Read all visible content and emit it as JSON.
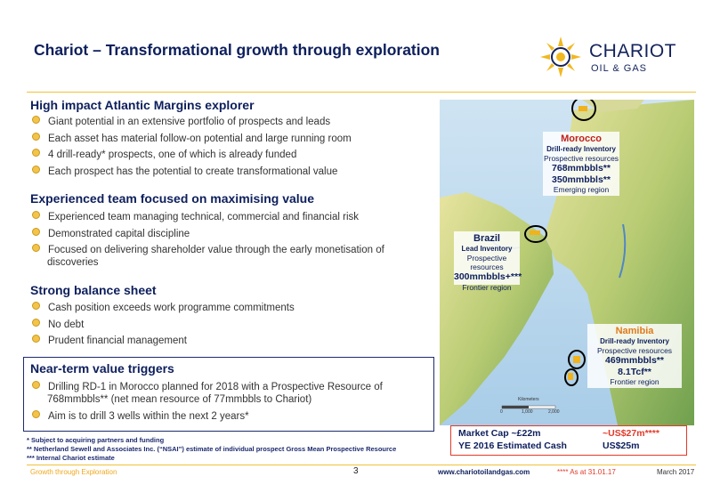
{
  "title": "Chariot – Transformational growth through exploration",
  "logo": {
    "name": "CHARIOT",
    "sub": "OIL & GAS"
  },
  "sections": [
    {
      "heading": "High impact Atlantic Margins explorer",
      "bullets": [
        "Giant potential in an extensive portfolio of prospects and leads",
        "Each asset has material follow-on potential and large running room",
        "4 drill-ready* prospects, one of which is already funded",
        "Each prospect has the potential to create transformational value"
      ]
    },
    {
      "heading": "Experienced team focused on maximising value",
      "bullets": [
        "Experienced team managing technical, commercial and financial risk",
        "Demonstrated capital discipline",
        "Focused on delivering shareholder value through the early monetisation of",
        "discoveries"
      ]
    },
    {
      "heading": "Strong balance sheet",
      "bullets": [
        "Cash position exceeds work programme commitments",
        "No debt",
        "Prudent financial management"
      ]
    },
    {
      "heading": "Near-term value triggers",
      "bullets": [
        "Drilling RD-1 in Morocco planned for 2018 with a Prospective Resource of",
        "768mmbbls** (net mean resource of 77mmbbls  to Chariot)",
        "Aim is to drill 3 wells within the next 2 years*"
      ]
    }
  ],
  "footnotes": [
    "*  Subject to acquiring partners and funding",
    "**  Netherland Sewell and Associates Inc. (“NSAI”) estimate of individual prospect Gross Mean Prospective Resource",
    "***  Internal Chariot estimate"
  ],
  "map": {
    "morocco": {
      "name": "Morocco",
      "l1": "Drill-ready Inventory",
      "l2": "Prospective resources",
      "v1": "768mmbbls**",
      "v2": "350mmbbls**",
      "l3": "Emerging region"
    },
    "brazil": {
      "name": "Brazil",
      "l1": "Lead Inventory",
      "l2": "Prospective resources",
      "v1": "300mmbbls+***",
      "l3": "Frontier region"
    },
    "namibia": {
      "name": "Namibia",
      "l1": "Drill-ready Inventory",
      "l2": "Prospective resources",
      "v1": "469mmbbls**",
      "v2": "8.1Tcf**",
      "l3": "Frontier region"
    },
    "scale_label": "Kilometers",
    "scale_ticks": [
      "0",
      "1,000",
      "2,000"
    ]
  },
  "market": {
    "cap_label": "Market Cap ~£22m",
    "cap_value": "~US$27m****",
    "cash_label": "YE 2016 Estimated Cash",
    "cash_value": "US$25m"
  },
  "footer": {
    "left": "Growth through Exploration",
    "page": "3",
    "url": "www.chariotoilandgas.com",
    "note": "****  As at 31.01.17",
    "date": "March 2017"
  },
  "colors": {
    "navy": "#0d1f5c",
    "gold": "#f0c23a",
    "red": "#e23a2a",
    "ocean": "#3e7fb5"
  }
}
